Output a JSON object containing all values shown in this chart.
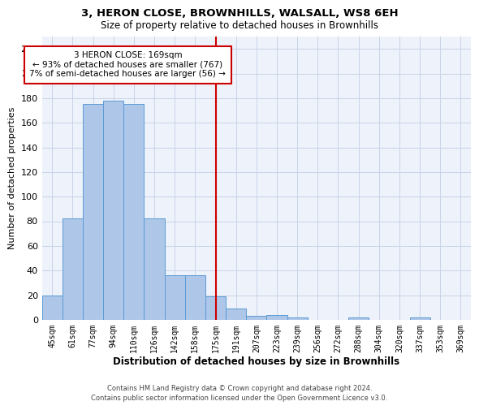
{
  "title": "3, HERON CLOSE, BROWNHILLS, WALSALL, WS8 6EH",
  "subtitle": "Size of property relative to detached houses in Brownhills",
  "xlabel": "Distribution of detached houses by size in Brownhills",
  "ylabel": "Number of detached properties",
  "footer": "Contains HM Land Registry data © Crown copyright and database right 2024.\nContains public sector information licensed under the Open Government Licence v3.0.",
  "bin_labels": [
    "45sqm",
    "61sqm",
    "77sqm",
    "94sqm",
    "110sqm",
    "126sqm",
    "142sqm",
    "158sqm",
    "175sqm",
    "191sqm",
    "207sqm",
    "223sqm",
    "239sqm",
    "256sqm",
    "272sqm",
    "288sqm",
    "304sqm",
    "320sqm",
    "337sqm",
    "353sqm",
    "369sqm"
  ],
  "bar_values": [
    20,
    82,
    175,
    178,
    175,
    82,
    36,
    36,
    19,
    9,
    3,
    4,
    2,
    0,
    0,
    2,
    0,
    0,
    2,
    0,
    0
  ],
  "bar_color": "#aec6e8",
  "bar_edge_color": "#5b9bd5",
  "vline_color": "#cc0000",
  "annotation_title": "3 HERON CLOSE: 169sqm",
  "annotation_line1": "← 93% of detached houses are smaller (767)",
  "annotation_line2": "7% of semi-detached houses are larger (56) →",
  "annotation_box_color": "#cc0000",
  "ylim": [
    0,
    230
  ],
  "yticks": [
    0,
    20,
    40,
    60,
    80,
    100,
    120,
    140,
    160,
    180,
    200,
    220
  ],
  "bg_color": "#eef2fb",
  "grid_color": "#c8d4e8"
}
